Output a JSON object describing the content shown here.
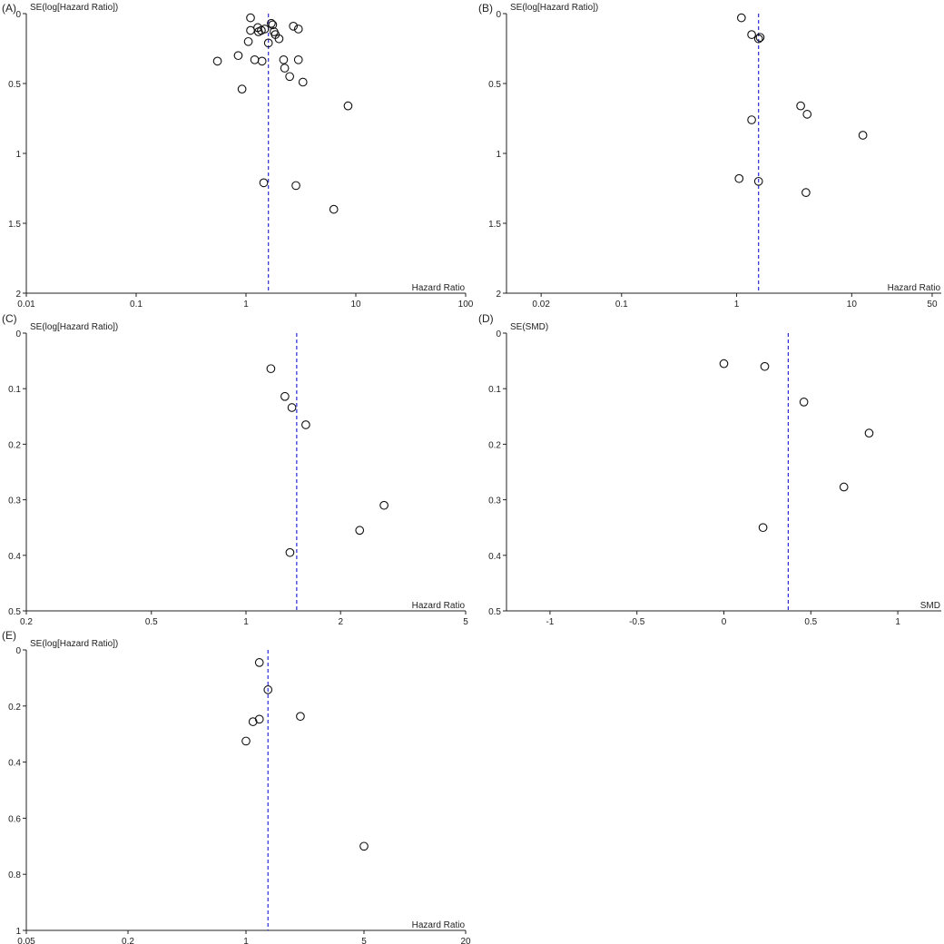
{
  "chart_data": [
    {
      "panel": "(A)",
      "type": "scatter",
      "x_scale": "log",
      "ylabel": "SE(log[Hazard Ratio])",
      "xlabel": "Hazard Ratio",
      "xlim": [
        0.01,
        100
      ],
      "ylim": [
        0,
        2
      ],
      "y_reversed": true,
      "x_ticks": [
        0.01,
        0.1,
        1,
        10,
        100
      ],
      "x_tick_labels": [
        "0.01",
        "0.1",
        "1",
        "10",
        "100"
      ],
      "y_ticks": [
        0,
        0.5,
        1,
        1.5,
        2
      ],
      "y_tick_labels": [
        "0",
        "0.5",
        "1",
        "1.5",
        "2"
      ],
      "reference_line": 1.6,
      "points": [
        {
          "x": 1.1,
          "y": 0.03
        },
        {
          "x": 1.7,
          "y": 0.07
        },
        {
          "x": 1.75,
          "y": 0.08
        },
        {
          "x": 2.7,
          "y": 0.09
        },
        {
          "x": 3.0,
          "y": 0.11
        },
        {
          "x": 1.1,
          "y": 0.12
        },
        {
          "x": 1.28,
          "y": 0.1
        },
        {
          "x": 1.3,
          "y": 0.13
        },
        {
          "x": 1.38,
          "y": 0.12
        },
        {
          "x": 1.48,
          "y": 0.11
        },
        {
          "x": 1.8,
          "y": 0.13
        },
        {
          "x": 1.85,
          "y": 0.15
        },
        {
          "x": 2.0,
          "y": 0.18
        },
        {
          "x": 1.05,
          "y": 0.2
        },
        {
          "x": 1.6,
          "y": 0.21
        },
        {
          "x": 0.55,
          "y": 0.34
        },
        {
          "x": 0.85,
          "y": 0.3
        },
        {
          "x": 1.2,
          "y": 0.33
        },
        {
          "x": 1.4,
          "y": 0.34
        },
        {
          "x": 2.2,
          "y": 0.33
        },
        {
          "x": 3.0,
          "y": 0.33
        },
        {
          "x": 2.25,
          "y": 0.39
        },
        {
          "x": 2.5,
          "y": 0.45
        },
        {
          "x": 3.3,
          "y": 0.49
        },
        {
          "x": 0.92,
          "y": 0.54
        },
        {
          "x": 8.5,
          "y": 0.66
        },
        {
          "x": 1.45,
          "y": 1.21
        },
        {
          "x": 2.85,
          "y": 1.23
        },
        {
          "x": 6.3,
          "y": 1.4
        }
      ]
    },
    {
      "panel": "(B)",
      "type": "scatter",
      "x_scale": "log",
      "ylabel": "SE(log[Hazard Ratio])",
      "xlabel": "Hazard Ratio",
      "xlim": [
        0.01,
        60
      ],
      "ylim": [
        0,
        2
      ],
      "y_reversed": true,
      "x_ticks": [
        0.02,
        0.1,
        1,
        10,
        50
      ],
      "x_tick_labels": [
        "0.02",
        "0.1",
        "1",
        "10",
        "50"
      ],
      "y_ticks": [
        0,
        0.5,
        1,
        1.5,
        2
      ],
      "y_tick_labels": [
        "0",
        "0.5",
        "1",
        "1.5",
        "2"
      ],
      "reference_line": 1.55,
      "points": [
        {
          "x": 1.1,
          "y": 0.03
        },
        {
          "x": 1.35,
          "y": 0.15
        },
        {
          "x": 1.55,
          "y": 0.18
        },
        {
          "x": 1.6,
          "y": 0.17
        },
        {
          "x": 3.6,
          "y": 0.66
        },
        {
          "x": 4.1,
          "y": 0.72
        },
        {
          "x": 1.35,
          "y": 0.76
        },
        {
          "x": 12.5,
          "y": 0.87
        },
        {
          "x": 1.05,
          "y": 1.18
        },
        {
          "x": 1.55,
          "y": 1.2
        },
        {
          "x": 4.0,
          "y": 1.28
        }
      ]
    },
    {
      "panel": "(C)",
      "type": "scatter",
      "x_scale": "log",
      "ylabel": "SE(log[Hazard Ratio])",
      "xlabel": "Hazard Ratio",
      "xlim": [
        0.2,
        5
      ],
      "ylim": [
        0,
        0.5
      ],
      "y_reversed": true,
      "x_ticks": [
        0.2,
        0.5,
        1,
        2,
        5
      ],
      "x_tick_labels": [
        "0.2",
        "0.5",
        "1",
        "2",
        "5"
      ],
      "y_ticks": [
        0,
        0.1,
        0.2,
        0.3,
        0.4,
        0.5
      ],
      "y_tick_labels": [
        "0",
        "0.1",
        "0.2",
        "0.3",
        "0.4",
        "0.5"
      ],
      "reference_line": 1.45,
      "points": [
        {
          "x": 1.2,
          "y": 0.064
        },
        {
          "x": 1.33,
          "y": 0.114
        },
        {
          "x": 1.4,
          "y": 0.134
        },
        {
          "x": 1.55,
          "y": 0.165
        },
        {
          "x": 2.75,
          "y": 0.31
        },
        {
          "x": 2.3,
          "y": 0.355
        },
        {
          "x": 1.38,
          "y": 0.395
        }
      ]
    },
    {
      "panel": "(D)",
      "type": "scatter",
      "x_scale": "linear",
      "ylabel": "SE(SMD)",
      "xlabel": "SMD",
      "xlim": [
        -1.25,
        1.25
      ],
      "ylim": [
        0,
        0.5
      ],
      "y_reversed": true,
      "x_ticks": [
        -1,
        -0.5,
        0,
        0.5,
        1
      ],
      "x_tick_labels": [
        "-1",
        "-0.5",
        "0",
        "0.5",
        "1"
      ],
      "y_ticks": [
        0,
        0.1,
        0.2,
        0.3,
        0.4,
        0.5
      ],
      "y_tick_labels": [
        "0",
        "0.1",
        "0.2",
        "0.3",
        "0.4",
        "0.5"
      ],
      "reference_line": 0.37,
      "points": [
        {
          "x": 0.0,
          "y": 0.055
        },
        {
          "x": 0.235,
          "y": 0.06
        },
        {
          "x": 0.46,
          "y": 0.124
        },
        {
          "x": 0.835,
          "y": 0.18
        },
        {
          "x": 0.69,
          "y": 0.277
        },
        {
          "x": 0.225,
          "y": 0.35
        }
      ]
    },
    {
      "panel": "(E)",
      "type": "scatter",
      "x_scale": "log",
      "ylabel": "SE(log[Hazard Ratio])",
      "xlabel": "Hazard Ratio",
      "xlim": [
        0.05,
        20
      ],
      "ylim": [
        0,
        1
      ],
      "y_reversed": true,
      "x_ticks": [
        0.05,
        0.2,
        1,
        5,
        20
      ],
      "x_tick_labels": [
        "0.05",
        "0.2",
        "1",
        "5",
        "20"
      ],
      "y_ticks": [
        0,
        0.2,
        0.4,
        0.6,
        0.8,
        1
      ],
      "y_tick_labels": [
        "0",
        "0.2",
        "0.4",
        "0.6",
        "0.8",
        "1"
      ],
      "reference_line": 1.35,
      "points": [
        {
          "x": 1.2,
          "y": 0.045
        },
        {
          "x": 1.35,
          "y": 0.142
        },
        {
          "x": 2.1,
          "y": 0.237
        },
        {
          "x": 1.2,
          "y": 0.247
        },
        {
          "x": 1.1,
          "y": 0.256
        },
        {
          "x": 1.0,
          "y": 0.325
        },
        {
          "x": 5.0,
          "y": 0.7
        }
      ]
    }
  ]
}
